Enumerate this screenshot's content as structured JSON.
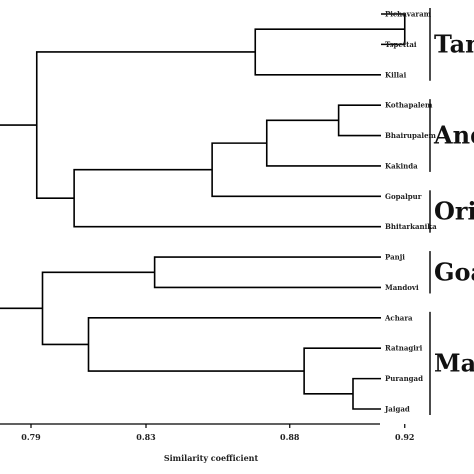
{
  "chart_data": {
    "type": "dendrogram",
    "xlabel": "Similarity coefficient",
    "xticks": [
      "0.79",
      "0.83",
      "0.88",
      "0.92"
    ],
    "leaves": [
      "Pichavaram",
      "Tspettai",
      "Killai",
      "Kothapalem",
      "Bhairupalem",
      "Kakinda",
      "Gopalpur",
      "Bhitarkanika",
      "Panji",
      "Mandovi",
      "Achara",
      "Ratnagiri",
      "Purangad",
      "Jaigad"
    ],
    "merges": [
      {
        "id": "m1",
        "children": [
          "Pichavaram",
          "Tspettai"
        ],
        "similarity": 0.92
      },
      {
        "id": "m2",
        "children": [
          "m1",
          "Killai"
        ],
        "similarity": 0.868
      },
      {
        "id": "m3",
        "children": [
          "Kothapalem",
          "Bhairupalem"
        ],
        "similarity": 0.897
      },
      {
        "id": "m4",
        "children": [
          "m3",
          "Kakinda"
        ],
        "similarity": 0.872
      },
      {
        "id": "m5",
        "children": [
          "m4",
          "Gopalpur"
        ],
        "similarity": 0.853
      },
      {
        "id": "m6",
        "children": [
          "m5",
          "Bhitarkanika"
        ],
        "similarity": 0.805
      },
      {
        "id": "m7",
        "children": [
          "m2",
          "m6"
        ],
        "similarity": 0.792
      },
      {
        "id": "m8",
        "children": [
          "Panji",
          "Mandovi"
        ],
        "similarity": 0.833
      },
      {
        "id": "m9",
        "children": [
          "Purangad",
          "Jaigad"
        ],
        "similarity": 0.902
      },
      {
        "id": "m10",
        "children": [
          "Ratnagiri",
          "m9"
        ],
        "similarity": 0.885
      },
      {
        "id": "m11",
        "children": [
          "Achara",
          "m10"
        ],
        "similarity": 0.81
      },
      {
        "id": "m12",
        "children": [
          "m8",
          "m11"
        ],
        "similarity": 0.794
      },
      {
        "id": "m13",
        "children": [
          "m7",
          "m12"
        ],
        "similarity": 0.778
      }
    ],
    "groups": [
      {
        "label": "Tam",
        "leaves": [
          "Pichavaram",
          "Tspettai",
          "Killai"
        ]
      },
      {
        "label": "Andl",
        "leaves": [
          "Kothapalem",
          "Bhairupalem",
          "Kakinda"
        ]
      },
      {
        "label": "Oris",
        "leaves": [
          "Gopalpur",
          "Bhitarkanika"
        ]
      },
      {
        "label": "Goa",
        "leaves": [
          "Panji",
          "Mandovi"
        ]
      },
      {
        "label": "Mah",
        "leaves": [
          "Achara",
          "Ratnagiri",
          "Purangad",
          "Jaigad"
        ]
      }
    ]
  }
}
